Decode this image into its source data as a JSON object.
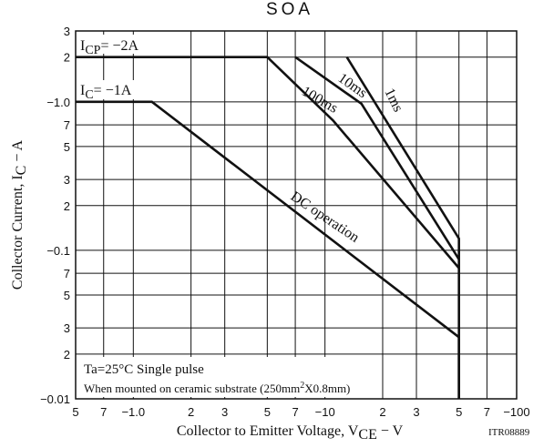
{
  "chart_data": {
    "type": "line",
    "title": "SOA",
    "x_label": {
      "main": "Collector to Emitter Voltage, V",
      "sub": "CE",
      "rest": " − V"
    },
    "y_label": {
      "main": "Collector Current, I",
      "sub": "C",
      "rest": " − A"
    },
    "code": "ITR08889",
    "log_x": true,
    "log_y": true,
    "grid": true,
    "xlim": [
      0.5,
      100
    ],
    "ylim": [
      0.01,
      3
    ],
    "xticks": [
      {
        "value": 0.5,
        "label": "5"
      },
      {
        "value": 0.7,
        "label": "7"
      },
      {
        "value": 1,
        "label": "−1.0"
      },
      2,
      3,
      5,
      7,
      {
        "value": 10,
        "label": "−10"
      },
      {
        "value": 20,
        "label": "2"
      },
      {
        "value": 30,
        "label": "3"
      },
      {
        "value": 50,
        "label": "5"
      },
      {
        "value": 70,
        "label": "7"
      },
      {
        "value": 100,
        "label": "−100"
      }
    ],
    "yticks": [
      {
        "value": 0.01,
        "label": "−0.01"
      },
      {
        "value": 0.02,
        "label": "2"
      },
      {
        "value": 0.03,
        "label": "3"
      },
      {
        "value": 0.05,
        "label": "5"
      },
      {
        "value": 0.07,
        "label": "7"
      },
      {
        "value": 0.1,
        "label": "−0.1"
      },
      {
        "value": 0.2,
        "label": "2"
      },
      {
        "value": 0.3,
        "label": "3"
      },
      {
        "value": 0.5,
        "label": "5"
      },
      {
        "value": 0.7,
        "label": "7"
      },
      {
        "value": 1,
        "label": "−1.0"
      },
      2,
      3
    ],
    "series": [
      {
        "name": "DC operation",
        "color": "#111111",
        "x": [
          0.5,
          1.25,
          50,
          50
        ],
        "values": [
          1,
          1,
          0.026,
          0.01
        ]
      },
      {
        "name": "100ms",
        "color": "#111111",
        "x": [
          0.5,
          5,
          11,
          50
        ],
        "values": [
          2,
          2,
          0.75,
          0.076
        ]
      },
      {
        "name": "10ms",
        "color": "#111111",
        "x": [
          7,
          15.5,
          50
        ],
        "values": [
          2,
          0.97,
          0.087
        ]
      },
      {
        "name": "1ms",
        "color": "#111111",
        "x": [
          13,
          50,
          50
        ],
        "values": [
          2,
          0.12,
          0.01
        ]
      }
    ],
    "annotations": {
      "icp": {
        "main": "I",
        "sub": "CP",
        "rest": "= −2A"
      },
      "ic": {
        "main": "I",
        "sub": "C",
        "rest": "= −1A"
      },
      "cond": "Ta=25°C  Single pulse",
      "mount": {
        "main": "When mounted on ceramic substrate (250mm",
        "sup": "2",
        "rest": "X0.8mm)"
      }
    }
  }
}
